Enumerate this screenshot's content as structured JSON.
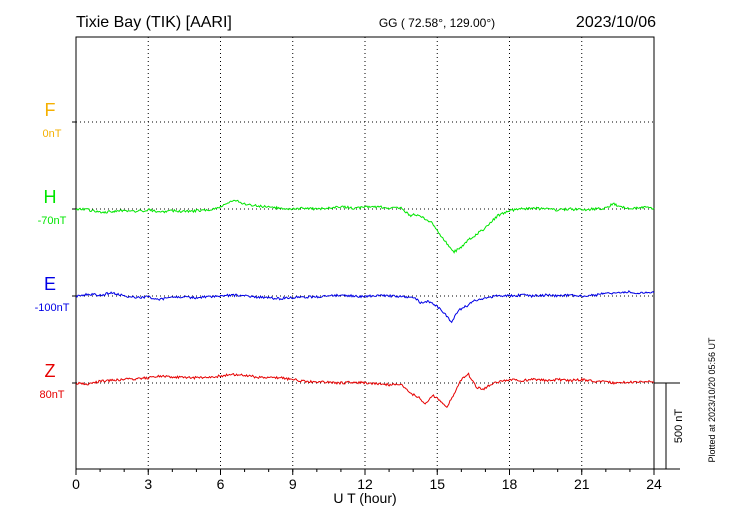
{
  "header": {
    "station": "Tixie Bay (TIK)  [AARI]",
    "coords": "GG ( 72.58°, 129.00°)",
    "date": "2023/10/06"
  },
  "footer": {
    "plotted": "Plotted at 2023/10/20 05:56 UT"
  },
  "chart_data": {
    "type": "line",
    "xlabel": "U T (hour)",
    "xlim": [
      0,
      24
    ],
    "xticks": [
      "0",
      "3",
      "6",
      "9",
      "12",
      "15",
      "18",
      "21",
      "24"
    ],
    "scale_bar_label": "500 nT",
    "grid": true,
    "series": [
      {
        "name": "F",
        "offset_label": "0nT",
        "color": "#f5b000",
        "hours": [],
        "values": []
      },
      {
        "name": "H",
        "offset_label": "-70nT",
        "color": "#00e600",
        "hours": [
          0,
          0.5,
          1,
          1.5,
          2,
          2.5,
          3,
          3.5,
          4,
          4.5,
          5,
          5.5,
          6,
          6.3,
          6.6,
          7,
          7.5,
          8,
          8.5,
          9,
          9.5,
          10,
          10.5,
          11,
          11.5,
          12,
          12.5,
          13,
          13.5,
          13.9,
          14.1,
          14.4,
          14.8,
          15.1,
          15.4,
          15.7,
          16,
          16.3,
          16.6,
          16.9,
          17.2,
          17.5,
          18,
          18.5,
          19,
          19.5,
          20,
          20.5,
          21,
          21.5,
          22,
          22.3,
          22.7,
          23,
          23.5,
          24
        ],
        "values": [
          0,
          -5,
          -20,
          -15,
          -10,
          -15,
          -5,
          -20,
          -10,
          -15,
          -10,
          -5,
          10,
          40,
          50,
          30,
          20,
          10,
          5,
          0,
          5,
          0,
          5,
          15,
          5,
          10,
          15,
          5,
          5,
          -40,
          -30,
          -50,
          -80,
          -150,
          -200,
          -250,
          -220,
          -180,
          -150,
          -120,
          -80,
          -40,
          -10,
          0,
          5,
          0,
          -5,
          0,
          -5,
          0,
          5,
          30,
          10,
          5,
          10,
          5
        ]
      },
      {
        "name": "E",
        "offset_label": "-100nT",
        "color": "#0000e6",
        "hours": [
          0,
          0.5,
          1,
          1.5,
          2,
          2.5,
          3,
          3.5,
          4,
          4.5,
          5,
          5.5,
          6,
          6.5,
          7,
          7.5,
          8,
          8.5,
          9,
          9.5,
          10,
          10.5,
          11,
          11.5,
          12,
          12.5,
          13,
          13.5,
          14,
          14.3,
          14.6,
          15,
          15.3,
          15.6,
          15.9,
          16.2,
          16.5,
          17,
          17.5,
          18,
          18.5,
          19,
          19.5,
          20,
          20.5,
          21,
          21.5,
          22,
          22.5,
          23,
          23.5,
          24
        ],
        "values": [
          0,
          10,
          5,
          20,
          0,
          -10,
          -5,
          -20,
          -10,
          -5,
          -10,
          -5,
          0,
          5,
          0,
          -5,
          -10,
          -15,
          -10,
          -5,
          -5,
          0,
          5,
          0,
          -5,
          5,
          0,
          -5,
          -5,
          -40,
          -30,
          -60,
          -100,
          -150,
          -80,
          -60,
          -30,
          -10,
          0,
          0,
          5,
          0,
          5,
          0,
          5,
          0,
          5,
          15,
          20,
          25,
          15,
          20
        ]
      },
      {
        "name": "Z",
        "offset_label": "80nT",
        "color": "#e60000",
        "hours": [
          0,
          0.5,
          1,
          1.5,
          2,
          2.5,
          3,
          3.5,
          4,
          4.5,
          5,
          5.5,
          6,
          6.5,
          7,
          7.5,
          8,
          8.5,
          9,
          9.5,
          10,
          10.5,
          11,
          11.5,
          12,
          12.5,
          13,
          13.5,
          13.9,
          14.2,
          14.5,
          14.8,
          15.1,
          15.4,
          15.7,
          16,
          16.3,
          16.6,
          16.9,
          17.2,
          17.5,
          18,
          18.5,
          19,
          19.5,
          20,
          20.5,
          21,
          21.5,
          22,
          22.5,
          23,
          23.5,
          24
        ],
        "values": [
          0,
          -10,
          10,
          15,
          20,
          25,
          30,
          40,
          35,
          30,
          30,
          35,
          40,
          50,
          45,
          35,
          30,
          30,
          20,
          10,
          5,
          5,
          0,
          5,
          0,
          -5,
          -10,
          -10,
          -60,
          -80,
          -120,
          -70,
          -100,
          -140,
          -60,
          20,
          50,
          -20,
          -40,
          -10,
          5,
          20,
          15,
          20,
          15,
          20,
          15,
          20,
          10,
          5,
          0,
          5,
          10,
          5
        ]
      }
    ]
  }
}
